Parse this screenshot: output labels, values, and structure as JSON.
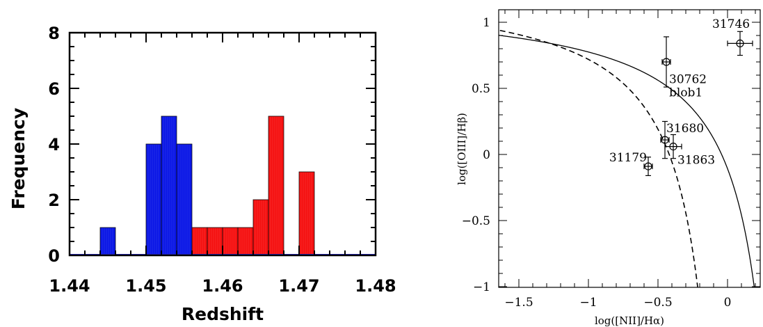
{
  "chart_data": [
    {
      "type": "bar",
      "xlabel": "Redshift",
      "ylabel": "Frequency",
      "xlim": [
        1.44,
        1.48
      ],
      "ylim": [
        0,
        8
      ],
      "xticks": [
        "1.44",
        "1.45",
        "1.46",
        "1.47",
        "1.48"
      ],
      "yticks": [
        "0",
        "2",
        "4",
        "6",
        "8"
      ],
      "bin_width": 0.002,
      "series": [
        {
          "color": "#0a16e6",
          "bins": [
            {
              "x0": 1.444,
              "value": 1
            },
            {
              "x0": 1.45,
              "value": 4
            },
            {
              "x0": 1.452,
              "value": 5
            },
            {
              "x0": 1.454,
              "value": 4
            }
          ]
        },
        {
          "color": "#f51010",
          "bins": [
            {
              "x0": 1.456,
              "value": 1
            },
            {
              "x0": 1.458,
              "value": 1
            },
            {
              "x0": 1.46,
              "value": 1
            },
            {
              "x0": 1.462,
              "value": 1
            },
            {
              "x0": 1.464,
              "value": 2
            },
            {
              "x0": 1.466,
              "value": 5
            },
            {
              "x0": 1.47,
              "value": 3
            }
          ]
        }
      ],
      "baseline_color": "#2a2ad0"
    },
    {
      "type": "scatter",
      "xlabel": "log([NII]/Hα)",
      "ylabel": "log([OIII]/Hβ)",
      "xlim": [
        -1.6,
        0.25
      ],
      "ylim": [
        -1,
        1.1
      ],
      "xticks": [
        "−1.5",
        "−1",
        "−0.5",
        "0"
      ],
      "yticks": [
        "−1",
        "−0.5",
        "0",
        "0.5",
        "1"
      ],
      "points": [
        {
          "label": "31746",
          "x": 0.09,
          "y": 0.84,
          "xerr": 0.09,
          "yerr": 0.09,
          "lx": -0.11,
          "ly": 0.99,
          "anchor": "start"
        },
        {
          "label": "30762",
          "x": -0.44,
          "y": 0.7,
          "xerr": 0.03,
          "yerr": 0.19,
          "lx": -0.42,
          "ly": 0.57,
          "anchor": "start"
        },
        {
          "label": "blob1",
          "x": -0.44,
          "y": 0.7,
          "xerr": 0,
          "yerr": 0,
          "lx": -0.42,
          "ly": 0.47,
          "anchor": "start",
          "no_marker": true
        },
        {
          "label": "31680",
          "x": -0.45,
          "y": 0.11,
          "xerr": 0.03,
          "yerr": 0.14,
          "lx": -0.44,
          "ly": 0.2,
          "anchor": "start"
        },
        {
          "label": "31863",
          "x": -0.39,
          "y": 0.06,
          "xerr": 0.06,
          "yerr": 0.09,
          "lx": -0.36,
          "ly": -0.04,
          "anchor": "start"
        },
        {
          "label": "31179",
          "x": -0.57,
          "y": -0.09,
          "xerr": 0.03,
          "yerr": 0.07,
          "lx": -0.58,
          "ly": -0.02,
          "anchor": "end"
        }
      ],
      "curves": [
        {
          "style": "solid",
          "formula": "0.61/(x-0.47)+1.19"
        },
        {
          "style": "dashed",
          "formula": "0.61/(x-0.05)+1.3"
        }
      ]
    }
  ]
}
